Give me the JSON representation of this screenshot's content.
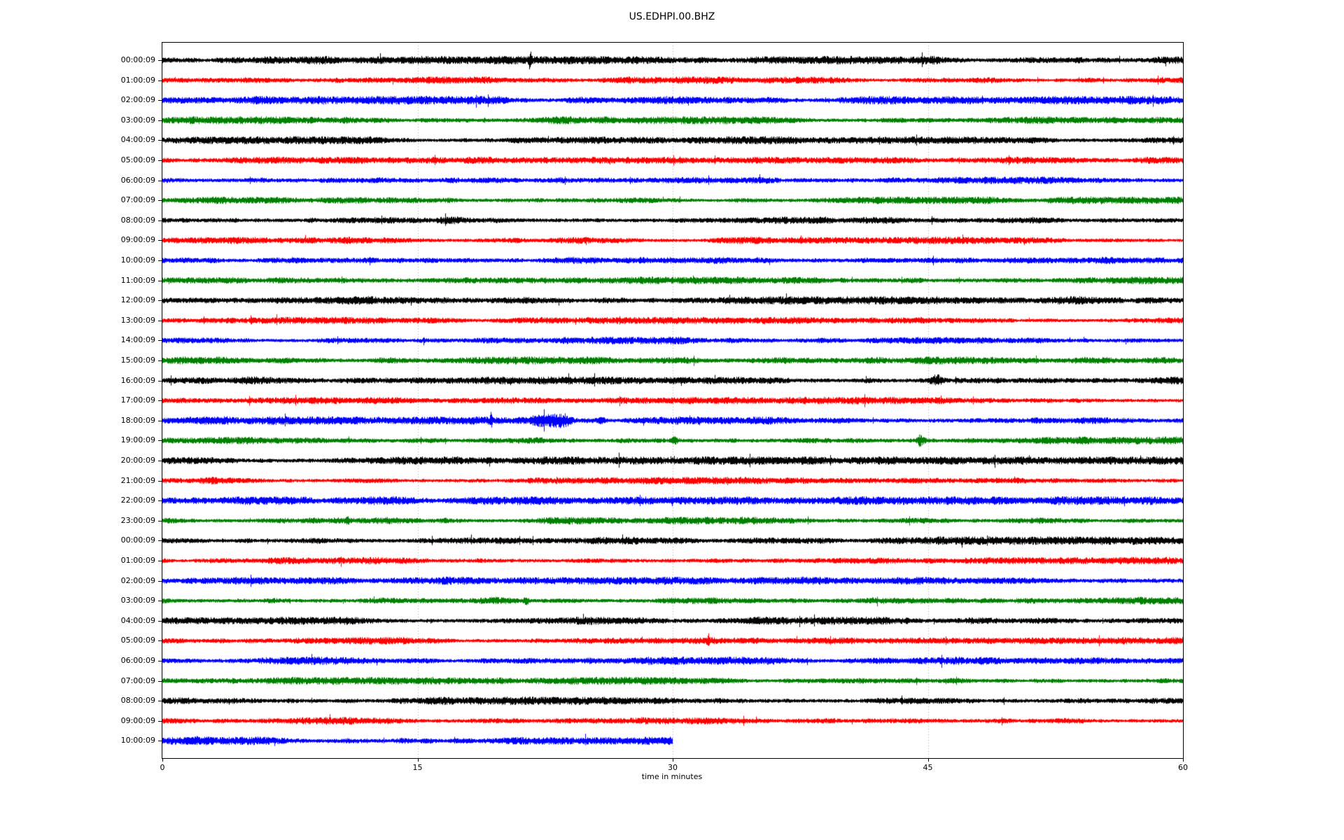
{
  "title": "US.EDHPI.00.BHZ",
  "chart_data": {
    "type": "line",
    "subtype": "helicorder-seismogram",
    "title": "US.EDHPI.00.BHZ",
    "xlabel": "time in minutes",
    "xlim": [
      0,
      60
    ],
    "x_ticks": [
      0,
      15,
      30,
      45,
      60
    ],
    "x_tick_labels": [
      "0",
      "15",
      "30",
      "45",
      "60"
    ],
    "grid": {
      "vertical_minutes": [
        15,
        30,
        45
      ],
      "color": "#ababab",
      "style": "dashed"
    },
    "trace_color_cycle": [
      "#000000",
      "#ff0000",
      "#0000ff",
      "#008000"
    ],
    "traces": [
      {
        "label": "00:00:09",
        "color": "#000000",
        "start_minute": 0,
        "end_minute": 60,
        "amp": 3.6,
        "events": [
          {
            "minute": 21.6,
            "peak": 2.6,
            "rise": 0.07,
            "decay": 0.07
          }
        ]
      },
      {
        "label": "01:00:09",
        "color": "#ff0000",
        "start_minute": 0,
        "end_minute": 60,
        "amp": 3.2,
        "events": []
      },
      {
        "label": "02:00:09",
        "color": "#0000ff",
        "start_minute": 0,
        "end_minute": 60,
        "amp": 3.6,
        "events": []
      },
      {
        "label": "03:00:09",
        "color": "#008000",
        "start_minute": 0,
        "end_minute": 60,
        "amp": 3.4,
        "events": [
          {
            "minute": 18.9,
            "peak": 1.8,
            "rise": 0.08,
            "decay": 0.08
          }
        ]
      },
      {
        "label": "04:00:09",
        "color": "#000000",
        "start_minute": 0,
        "end_minute": 60,
        "amp": 3.4,
        "events": []
      },
      {
        "label": "05:00:09",
        "color": "#ff0000",
        "start_minute": 0,
        "end_minute": 60,
        "amp": 3.0,
        "events": []
      },
      {
        "label": "06:00:09",
        "color": "#0000ff",
        "start_minute": 0,
        "end_minute": 60,
        "amp": 3.5,
        "events": []
      },
      {
        "label": "07:00:09",
        "color": "#008000",
        "start_minute": 0,
        "end_minute": 60,
        "amp": 3.2,
        "events": []
      },
      {
        "label": "08:00:09",
        "color": "#000000",
        "start_minute": 0,
        "end_minute": 60,
        "amp": 3.5,
        "events": []
      },
      {
        "label": "09:00:09",
        "color": "#ff0000",
        "start_minute": 0,
        "end_minute": 60,
        "amp": 3.1,
        "events": []
      },
      {
        "label": "10:00:09",
        "color": "#0000ff",
        "start_minute": 0,
        "end_minute": 60,
        "amp": 3.4,
        "events": []
      },
      {
        "label": "11:00:09",
        "color": "#008000",
        "start_minute": 0,
        "end_minute": 60,
        "amp": 3.2,
        "events": []
      },
      {
        "label": "12:00:09",
        "color": "#000000",
        "start_minute": 0,
        "end_minute": 60,
        "amp": 3.6,
        "events": []
      },
      {
        "label": "13:00:09",
        "color": "#ff0000",
        "start_minute": 0,
        "end_minute": 60,
        "amp": 3.0,
        "events": []
      },
      {
        "label": "14:00:09",
        "color": "#0000ff",
        "start_minute": 0,
        "end_minute": 60,
        "amp": 3.3,
        "events": []
      },
      {
        "label": "15:00:09",
        "color": "#008000",
        "start_minute": 0,
        "end_minute": 60,
        "amp": 3.4,
        "events": []
      },
      {
        "label": "16:00:09",
        "color": "#000000",
        "start_minute": 0,
        "end_minute": 60,
        "amp": 3.4,
        "events": [
          {
            "minute": 45.5,
            "peak": 2.8,
            "rise": 0.3,
            "decay": 0.3
          }
        ]
      },
      {
        "label": "17:00:09",
        "color": "#ff0000",
        "start_minute": 0,
        "end_minute": 60,
        "amp": 3.1,
        "events": []
      },
      {
        "label": "18:00:09",
        "color": "#0000ff",
        "start_minute": 0,
        "end_minute": 60,
        "amp": 3.6,
        "events": [
          {
            "minute": 19.3,
            "peak": 2.4,
            "rise": 0.06,
            "decay": 0.06
          },
          {
            "minute": 23.5,
            "peak": 4.3,
            "rise": 1.7,
            "decay": 0.5
          },
          {
            "minute": 25.8,
            "peak": 1.9,
            "rise": 0.2,
            "decay": 0.2
          }
        ]
      },
      {
        "label": "19:00:09",
        "color": "#008000",
        "start_minute": 0,
        "end_minute": 60,
        "amp": 3.4,
        "events": [
          {
            "minute": 30.05,
            "peak": 3.0,
            "rise": 0.1,
            "decay": 0.25
          },
          {
            "minute": 44.5,
            "peak": 3.3,
            "rise": 0.15,
            "decay": 0.35
          }
        ]
      },
      {
        "label": "20:00:09",
        "color": "#000000",
        "start_minute": 0,
        "end_minute": 60,
        "amp": 3.5,
        "events": []
      },
      {
        "label": "21:00:09",
        "color": "#ff0000",
        "start_minute": 0,
        "end_minute": 60,
        "amp": 3.2,
        "events": []
      },
      {
        "label": "22:00:09",
        "color": "#0000ff",
        "start_minute": 0,
        "end_minute": 60,
        "amp": 3.7,
        "events": []
      },
      {
        "label": "23:00:09",
        "color": "#008000",
        "start_minute": 0,
        "end_minute": 60,
        "amp": 3.3,
        "events": [
          {
            "minute": 10.9,
            "peak": 1.8,
            "rise": 0.08,
            "decay": 0.08
          }
        ]
      },
      {
        "label": "00:00:09",
        "color": "#000000",
        "start_minute": 0,
        "end_minute": 60,
        "amp": 3.6,
        "events": []
      },
      {
        "label": "01:00:09",
        "color": "#ff0000",
        "start_minute": 0,
        "end_minute": 60,
        "amp": 3.1,
        "events": []
      },
      {
        "label": "02:00:09",
        "color": "#0000ff",
        "start_minute": 0,
        "end_minute": 60,
        "amp": 3.4,
        "events": []
      },
      {
        "label": "03:00:09",
        "color": "#008000",
        "start_minute": 0,
        "end_minute": 60,
        "amp": 3.4,
        "events": [
          {
            "minute": 21.4,
            "peak": 2.2,
            "rise": 0.15,
            "decay": 0.15
          }
        ]
      },
      {
        "label": "04:00:09",
        "color": "#000000",
        "start_minute": 0,
        "end_minute": 60,
        "amp": 3.5,
        "events": []
      },
      {
        "label": "05:00:09",
        "color": "#ff0000",
        "start_minute": 0,
        "end_minute": 60,
        "amp": 3.1,
        "events": [
          {
            "minute": 32.1,
            "peak": 2.0,
            "rise": 0.08,
            "decay": 0.08
          }
        ]
      },
      {
        "label": "06:00:09",
        "color": "#0000ff",
        "start_minute": 0,
        "end_minute": 60,
        "amp": 3.5,
        "events": []
      },
      {
        "label": "07:00:09",
        "color": "#008000",
        "start_minute": 0,
        "end_minute": 60,
        "amp": 3.3,
        "events": []
      },
      {
        "label": "08:00:09",
        "color": "#000000",
        "start_minute": 0,
        "end_minute": 60,
        "amp": 3.5,
        "events": []
      },
      {
        "label": "09:00:09",
        "color": "#ff0000",
        "start_minute": 0,
        "end_minute": 60,
        "amp": 3.3,
        "events": []
      },
      {
        "label": "10:00:09",
        "color": "#0000ff",
        "start_minute": 0,
        "end_minute": 30,
        "amp": 3.6,
        "events": []
      }
    ]
  }
}
